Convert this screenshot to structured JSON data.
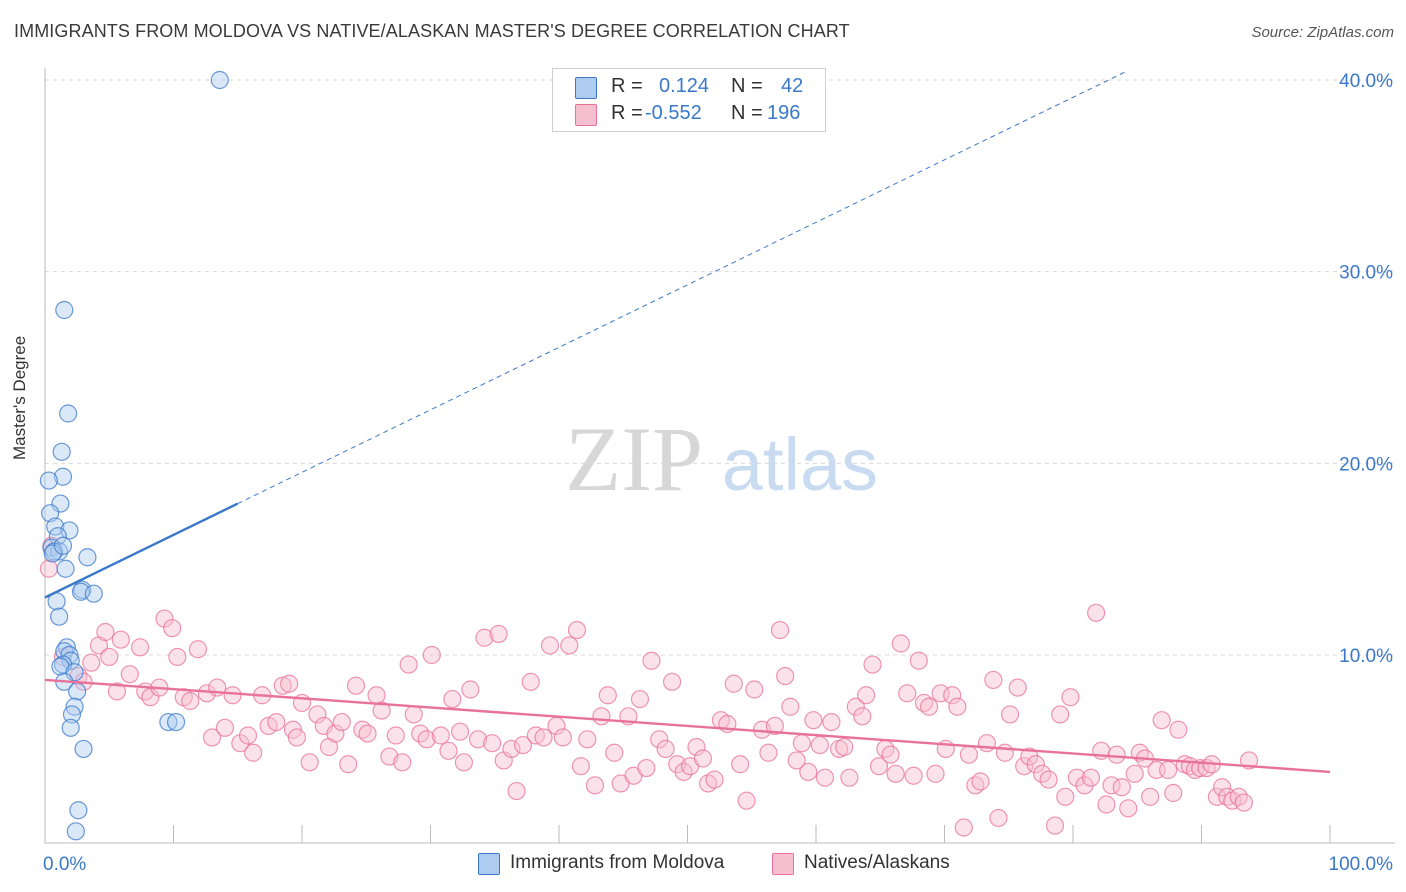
{
  "title": "IMMIGRANTS FROM MOLDOVA VS NATIVE/ALASKAN MASTER'S DEGREE CORRELATION CHART",
  "source": "Source: ZipAtlas.com",
  "watermark": {
    "zip": "ZIP",
    "atlas": "atlas"
  },
  "colors": {
    "blue": "#3a78c9",
    "blue_fill": "#aecbf0",
    "pink": "#e8729a",
    "pink_fill": "#f6bfd0",
    "grid": "#d9d9d9",
    "tick_label": "#3a78c9"
  },
  "legend": {
    "rows": [
      {
        "r_label": "R =",
        "r_value": "0.124",
        "n_label": "N =",
        "n_value": "42",
        "color": "blue"
      },
      {
        "r_label": "R =",
        "r_value": "-0.552",
        "n_label": "N =",
        "n_value": "196",
        "color": "pink"
      }
    ]
  },
  "bottom_legend": [
    {
      "label": "Immigrants from Moldova",
      "color": "blue"
    },
    {
      "label": "Natives/Alaskans",
      "color": "pink"
    }
  ],
  "chart_data": {
    "type": "scatter",
    "title": "IMMIGRANTS FROM MOLDOVA VS NATIVE/ALASKAN MASTER'S DEGREE CORRELATION CHART",
    "xlabel": "",
    "ylabel": "Master's Degree",
    "xlim": [
      0,
      100
    ],
    "ylim": [
      0,
      40
    ],
    "x_ticks": [
      0,
      10,
      20,
      30,
      40,
      50,
      60,
      70,
      80,
      90,
      100
    ],
    "x_tick_labels_shown": {
      "0": "0.0%",
      "100": "100.0%"
    },
    "y_ticks": [
      10,
      20,
      30,
      40
    ],
    "y_tick_labels": [
      "10.0%",
      "20.0%",
      "30.0%",
      "40.0%"
    ],
    "grid": true,
    "legend_position": "top-center",
    "series": [
      {
        "name": "Immigrants from Moldova",
        "color": "blue",
        "R": 0.124,
        "N": 42,
        "trend": {
          "x0": 0,
          "y0": 13.0,
          "x1": 15,
          "y1": 17.9,
          "dashed_to": {
            "x": 84,
            "y": 40.4
          }
        },
        "points": [
          [
            13.6,
            40.0
          ],
          [
            1.5,
            28.0
          ],
          [
            1.8,
            22.6
          ],
          [
            1.3,
            20.6
          ],
          [
            1.4,
            19.3
          ],
          [
            0.3,
            19.1
          ],
          [
            1.2,
            17.9
          ],
          [
            0.4,
            17.4
          ],
          [
            0.8,
            16.7
          ],
          [
            1.9,
            16.5
          ],
          [
            1.0,
            16.2
          ],
          [
            0.5,
            15.6
          ],
          [
            1.1,
            15.4
          ],
          [
            0.7,
            15.4
          ],
          [
            0.6,
            15.3
          ],
          [
            1.4,
            15.7
          ],
          [
            3.3,
            15.1
          ],
          [
            1.6,
            14.5
          ],
          [
            0.9,
            12.8
          ],
          [
            2.9,
            13.4
          ],
          [
            2.8,
            13.3
          ],
          [
            3.8,
            13.2
          ],
          [
            1.1,
            12.0
          ],
          [
            1.7,
            10.4
          ],
          [
            1.5,
            10.2
          ],
          [
            1.9,
            10.0
          ],
          [
            2.0,
            9.7
          ],
          [
            1.4,
            9.5
          ],
          [
            1.2,
            9.4
          ],
          [
            2.3,
            9.1
          ],
          [
            1.5,
            8.6
          ],
          [
            2.5,
            8.1
          ],
          [
            2.3,
            7.3
          ],
          [
            2.1,
            6.9
          ],
          [
            2.0,
            6.2
          ],
          [
            9.6,
            6.5
          ],
          [
            10.2,
            6.5
          ],
          [
            3.0,
            5.1
          ],
          [
            2.6,
            1.9
          ],
          [
            2.4,
            0.8
          ]
        ]
      },
      {
        "name": "Natives/Alaskans",
        "color": "pink",
        "R": -0.552,
        "N": 196,
        "trend": {
          "x0": 0,
          "y0": 8.7,
          "x1": 100,
          "y1": 3.9
        },
        "points": [
          [
            0.3,
            14.5
          ],
          [
            0.5,
            15.7
          ],
          [
            1.4,
            9.9
          ],
          [
            2.6,
            8.9
          ],
          [
            3.0,
            8.6
          ],
          [
            3.6,
            9.6
          ],
          [
            4.2,
            10.5
          ],
          [
            4.7,
            11.2
          ],
          [
            5.0,
            9.9
          ],
          [
            5.6,
            8.1
          ],
          [
            5.9,
            10.8
          ],
          [
            6.6,
            9.0
          ],
          [
            7.4,
            10.4
          ],
          [
            7.8,
            8.1
          ],
          [
            8.2,
            7.8
          ],
          [
            8.9,
            8.3
          ],
          [
            9.3,
            11.9
          ],
          [
            9.9,
            11.4
          ],
          [
            10.3,
            9.9
          ],
          [
            10.8,
            7.8
          ],
          [
            11.3,
            7.6
          ],
          [
            11.9,
            10.3
          ],
          [
            12.6,
            8.0
          ],
          [
            13.0,
            5.7
          ],
          [
            13.4,
            8.3
          ],
          [
            14.0,
            6.2
          ],
          [
            14.6,
            7.9
          ],
          [
            15.2,
            5.4
          ],
          [
            15.8,
            5.8
          ],
          [
            16.2,
            4.9
          ],
          [
            16.9,
            7.9
          ],
          [
            17.4,
            6.3
          ],
          [
            18.0,
            6.5
          ],
          [
            18.5,
            8.4
          ],
          [
            19.0,
            8.5
          ],
          [
            19.3,
            6.1
          ],
          [
            19.6,
            5.7
          ],
          [
            20.0,
            7.5
          ],
          [
            20.6,
            4.4
          ],
          [
            21.2,
            6.9
          ],
          [
            21.7,
            6.3
          ],
          [
            22.1,
            5.2
          ],
          [
            22.6,
            5.9
          ],
          [
            23.1,
            6.5
          ],
          [
            23.6,
            4.3
          ],
          [
            24.2,
            8.4
          ],
          [
            24.7,
            6.1
          ],
          [
            25.1,
            5.9
          ],
          [
            25.8,
            7.9
          ],
          [
            26.2,
            7.1
          ],
          [
            26.8,
            4.7
          ],
          [
            27.3,
            5.8
          ],
          [
            27.8,
            4.4
          ],
          [
            28.3,
            9.5
          ],
          [
            28.7,
            6.9
          ],
          [
            29.2,
            5.9
          ],
          [
            29.7,
            5.6
          ],
          [
            30.1,
            10.0
          ],
          [
            30.8,
            5.8
          ],
          [
            31.4,
            5.0
          ],
          [
            31.7,
            7.7
          ],
          [
            32.3,
            6.0
          ],
          [
            32.6,
            4.4
          ],
          [
            33.1,
            8.2
          ],
          [
            33.7,
            5.6
          ],
          [
            34.2,
            10.9
          ],
          [
            34.8,
            5.4
          ],
          [
            35.3,
            11.1
          ],
          [
            35.7,
            4.5
          ],
          [
            36.3,
            5.1
          ],
          [
            36.7,
            2.9
          ],
          [
            37.2,
            5.3
          ],
          [
            37.8,
            8.6
          ],
          [
            38.2,
            5.8
          ],
          [
            38.8,
            5.7
          ],
          [
            39.3,
            10.5
          ],
          [
            39.8,
            6.3
          ],
          [
            40.3,
            5.7
          ],
          [
            40.8,
            10.5
          ],
          [
            41.4,
            11.3
          ],
          [
            41.7,
            4.2
          ],
          [
            42.2,
            5.6
          ],
          [
            42.8,
            3.2
          ],
          [
            43.3,
            6.8
          ],
          [
            43.8,
            7.9
          ],
          [
            44.3,
            4.9
          ],
          [
            44.8,
            3.3
          ],
          [
            45.4,
            6.8
          ],
          [
            45.8,
            3.7
          ],
          [
            46.3,
            7.7
          ],
          [
            46.8,
            4.1
          ],
          [
            47.2,
            9.7
          ],
          [
            47.8,
            5.6
          ],
          [
            48.3,
            5.1
          ],
          [
            48.8,
            8.6
          ],
          [
            49.2,
            4.3
          ],
          [
            49.7,
            3.9
          ],
          [
            50.2,
            4.2
          ],
          [
            50.7,
            5.2
          ],
          [
            51.2,
            4.6
          ],
          [
            51.6,
            3.3
          ],
          [
            52.1,
            3.5
          ],
          [
            52.6,
            6.6
          ],
          [
            53.1,
            6.4
          ],
          [
            53.6,
            8.5
          ],
          [
            54.1,
            4.3
          ],
          [
            54.6,
            2.4
          ],
          [
            55.2,
            8.2
          ],
          [
            55.8,
            6.1
          ],
          [
            56.3,
            4.9
          ],
          [
            56.8,
            6.3
          ],
          [
            57.2,
            11.3
          ],
          [
            57.6,
            8.9
          ],
          [
            58.0,
            7.3
          ],
          [
            58.5,
            4.5
          ],
          [
            58.9,
            5.4
          ],
          [
            59.4,
            3.9
          ],
          [
            59.8,
            6.6
          ],
          [
            60.3,
            5.3
          ],
          [
            60.7,
            3.6
          ],
          [
            61.2,
            6.5
          ],
          [
            61.8,
            5.1
          ],
          [
            62.2,
            5.2
          ],
          [
            62.6,
            3.6
          ],
          [
            63.1,
            7.3
          ],
          [
            63.6,
            6.8
          ],
          [
            63.9,
            7.9
          ],
          [
            64.4,
            9.5
          ],
          [
            64.9,
            4.2
          ],
          [
            65.4,
            5.1
          ],
          [
            65.8,
            4.8
          ],
          [
            66.2,
            3.8
          ],
          [
            66.6,
            10.6
          ],
          [
            67.1,
            8.0
          ],
          [
            67.6,
            3.7
          ],
          [
            68.0,
            9.7
          ],
          [
            68.4,
            7.5
          ],
          [
            68.8,
            7.3
          ],
          [
            69.3,
            3.8
          ],
          [
            69.7,
            8.0
          ],
          [
            70.1,
            5.1
          ],
          [
            70.6,
            7.9
          ],
          [
            71.0,
            7.3
          ],
          [
            71.5,
            1.0
          ],
          [
            71.9,
            4.8
          ],
          [
            72.4,
            3.2
          ],
          [
            72.8,
            3.4
          ],
          [
            73.3,
            5.4
          ],
          [
            73.8,
            8.7
          ],
          [
            74.2,
            1.5
          ],
          [
            74.7,
            4.9
          ],
          [
            75.1,
            6.9
          ],
          [
            75.7,
            8.3
          ],
          [
            76.2,
            4.2
          ],
          [
            76.6,
            4.7
          ],
          [
            77.1,
            4.3
          ],
          [
            77.6,
            3.8
          ],
          [
            78.1,
            3.5
          ],
          [
            78.6,
            1.1
          ],
          [
            79.0,
            6.9
          ],
          [
            79.4,
            2.6
          ],
          [
            79.8,
            7.8
          ],
          [
            80.3,
            3.6
          ],
          [
            80.9,
            3.2
          ],
          [
            81.4,
            3.6
          ],
          [
            81.8,
            12.2
          ],
          [
            82.2,
            5.0
          ],
          [
            82.6,
            2.2
          ],
          [
            83.0,
            3.2
          ],
          [
            83.4,
            4.8
          ],
          [
            83.8,
            3.1
          ],
          [
            84.3,
            2.0
          ],
          [
            84.8,
            3.8
          ],
          [
            85.2,
            4.9
          ],
          [
            85.6,
            4.6
          ],
          [
            86.0,
            2.6
          ],
          [
            86.5,
            4.0
          ],
          [
            86.9,
            6.6
          ],
          [
            87.4,
            4.0
          ],
          [
            87.8,
            2.8
          ],
          [
            88.2,
            6.1
          ],
          [
            88.7,
            4.3
          ],
          [
            89.1,
            4.2
          ],
          [
            89.5,
            4.0
          ],
          [
            89.9,
            4.1
          ],
          [
            90.4,
            4.1
          ],
          [
            90.8,
            4.3
          ],
          [
            91.2,
            2.6
          ],
          [
            91.6,
            3.1
          ],
          [
            92.0,
            2.6
          ],
          [
            92.4,
            2.4
          ],
          [
            92.9,
            2.6
          ],
          [
            93.3,
            2.3
          ],
          [
            93.7,
            4.5
          ]
        ]
      }
    ]
  }
}
